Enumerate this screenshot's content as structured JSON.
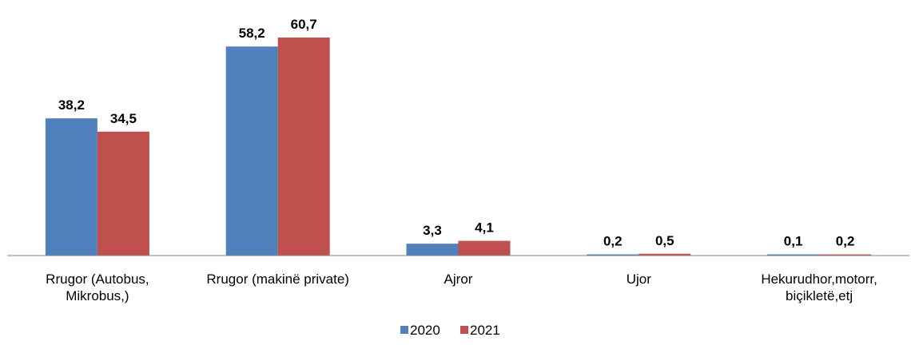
{
  "chart_data": {
    "type": "bar",
    "categories": [
      [
        "Rrugor (Autobus,",
        "Mikrobus,)"
      ],
      [
        "Rrugor (makinë private)"
      ],
      [
        "Ajror"
      ],
      [
        "Ujor"
      ],
      [
        "Hekurudhor,motorr,",
        "biçikletë,etj"
      ]
    ],
    "series": [
      {
        "name": "2020",
        "color": "#4F81BD",
        "values": [
          38.2,
          58.2,
          3.3,
          0.2,
          0.1
        ],
        "labels": [
          "38,2",
          "58,2",
          "3,3",
          "0,2",
          "0,1"
        ]
      },
      {
        "name": "2021",
        "color": "#C0504D",
        "values": [
          34.5,
          60.7,
          4.1,
          0.5,
          0.2
        ],
        "labels": [
          "34,5",
          "60,7",
          "4,1",
          "0,5",
          "0,2"
        ]
      }
    ],
    "ylim": [
      0,
      65
    ],
    "grid": false,
    "legend_position": "bottom",
    "axis_color": "#868686"
  }
}
